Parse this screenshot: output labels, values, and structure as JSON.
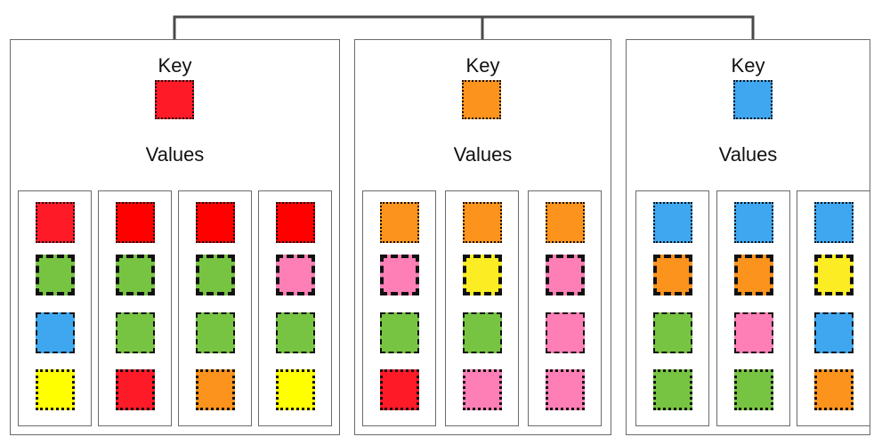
{
  "colors": {
    "red": "#fe1a26",
    "orange": "#fc931d",
    "blue": "#3fa7f0",
    "green": "#77c443",
    "pink": "#fd7fb6",
    "yellow": "#fcec24",
    "bright_red": "#fe0000",
    "bright_yellow": "#ffff00"
  },
  "groups": [
    {
      "key_label": "Key",
      "values_label": "Values",
      "key_color": "red",
      "columns": [
        [
          {
            "color": "red",
            "border": "dotted"
          },
          {
            "color": "green",
            "border": "bigdash"
          },
          {
            "color": "blue",
            "border": "dashed"
          },
          {
            "color": "bright_yellow",
            "border": "dense"
          }
        ],
        [
          {
            "color": "bright_red",
            "border": "dotted"
          },
          {
            "color": "green",
            "border": "bigdash"
          },
          {
            "color": "green",
            "border": "dashed"
          },
          {
            "color": "red",
            "border": "dense"
          }
        ],
        [
          {
            "color": "bright_red",
            "border": "dotted"
          },
          {
            "color": "green",
            "border": "bigdash"
          },
          {
            "color": "green",
            "border": "dashed"
          },
          {
            "color": "orange",
            "border": "dense"
          }
        ],
        [
          {
            "color": "bright_red",
            "border": "dotted"
          },
          {
            "color": "pink",
            "border": "bigdash"
          },
          {
            "color": "green",
            "border": "dashed"
          },
          {
            "color": "bright_yellow",
            "border": "dense"
          }
        ]
      ]
    },
    {
      "key_label": "Key",
      "values_label": "Values",
      "key_color": "orange",
      "columns": [
        [
          {
            "color": "orange",
            "border": "dotted"
          },
          {
            "color": "pink",
            "border": "bigdash"
          },
          {
            "color": "green",
            "border": "dashed"
          },
          {
            "color": "red",
            "border": "dense"
          }
        ],
        [
          {
            "color": "orange",
            "border": "dotted"
          },
          {
            "color": "yellow",
            "border": "bigdash"
          },
          {
            "color": "green",
            "border": "dashed"
          },
          {
            "color": "pink",
            "border": "dense"
          }
        ],
        [
          {
            "color": "orange",
            "border": "dotted"
          },
          {
            "color": "pink",
            "border": "bigdash"
          },
          {
            "color": "pink",
            "border": "dashed"
          },
          {
            "color": "pink",
            "border": "dense"
          }
        ]
      ]
    },
    {
      "key_label": "Key",
      "values_label": "Values",
      "key_color": "blue",
      "columns": [
        [
          {
            "color": "blue",
            "border": "dotted"
          },
          {
            "color": "orange",
            "border": "bigdash"
          },
          {
            "color": "green",
            "border": "dashed"
          },
          {
            "color": "green",
            "border": "dense"
          }
        ],
        [
          {
            "color": "blue",
            "border": "dotted"
          },
          {
            "color": "orange",
            "border": "bigdash"
          },
          {
            "color": "pink",
            "border": "dashed"
          },
          {
            "color": "green",
            "border": "dense"
          }
        ],
        [
          {
            "color": "blue",
            "border": "dotted"
          },
          {
            "color": "yellow",
            "border": "bigdash"
          },
          {
            "color": "blue",
            "border": "dashed"
          },
          {
            "color": "orange",
            "border": "dense"
          }
        ]
      ]
    }
  ]
}
